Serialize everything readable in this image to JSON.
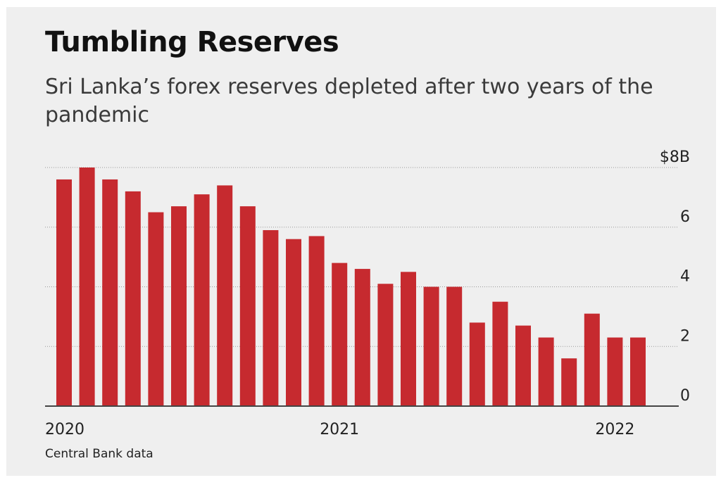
{
  "chart_data": {
    "type": "bar",
    "title": "Tumbling Reserves",
    "subtitle": "Sri Lanka’s forex reserves depleted after two years of the pandemic",
    "source": "Central Bank data",
    "unit_prefix": "$",
    "unit_suffix": "B",
    "ylim": [
      0,
      8
    ],
    "yticks": [
      0,
      2,
      4,
      6,
      8
    ],
    "grid": true,
    "y_axis_position": "right",
    "bar_color": "#c62a2f",
    "x_tick_labels": [
      {
        "label": "2020",
        "index": 0
      },
      {
        "label": "2021",
        "index": 12
      },
      {
        "label": "2022",
        "index": 24
      }
    ],
    "values": [
      7.6,
      8.0,
      7.6,
      7.2,
      6.5,
      6.7,
      7.1,
      7.4,
      6.7,
      5.9,
      5.6,
      5.7,
      4.8,
      4.6,
      4.1,
      4.5,
      4.0,
      4.0,
      2.8,
      3.5,
      2.7,
      2.3,
      1.6,
      3.1,
      2.3,
      2.3
    ]
  }
}
